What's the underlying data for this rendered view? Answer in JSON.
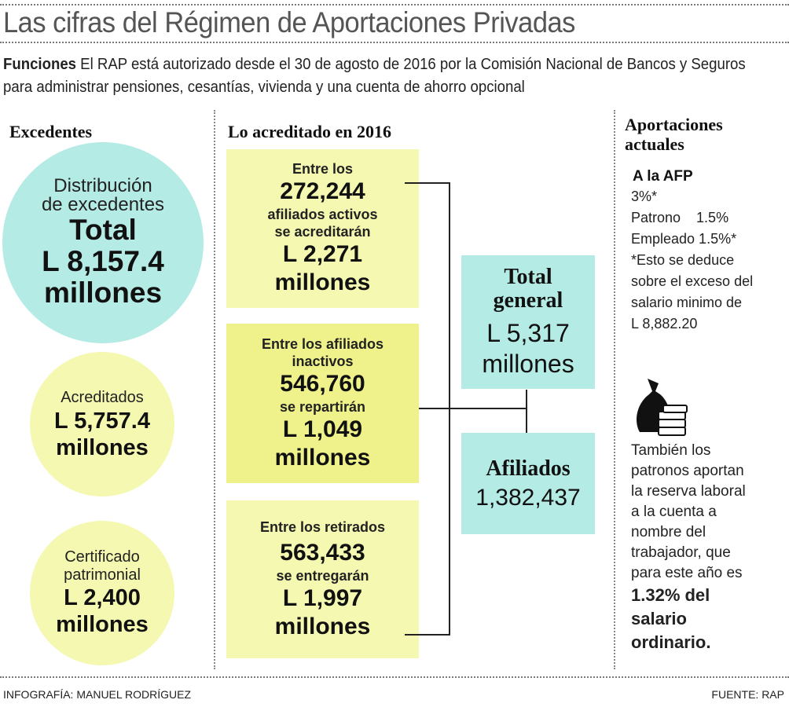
{
  "title": "Las cifras del Régimen de Aportaciones Privadas",
  "intro": {
    "label": "Funciones",
    "text": " El RAP está autorizado desde el 30 de agosto de 2016 por la Comisión Nacional de Bancos y Seguros para administrar pensiones, cesantías, vivienda y una cuenta de ahorro opcional"
  },
  "excedentes": {
    "heading": "Excedentes",
    "distribucion": {
      "line1": "Distribución",
      "line2": "de excedentes",
      "line3": "Total",
      "amount": "L 8,157.4",
      "unit": "millones"
    },
    "acreditados": {
      "label": "Acreditados",
      "amount": "L 5,757.4",
      "unit": "millones"
    },
    "certificado": {
      "line1": "Certificado",
      "line2": "patrimonial",
      "amount": "L 2,400",
      "unit": "millones"
    }
  },
  "acreditado": {
    "heading": "Lo acreditado en 2016",
    "boxes": [
      {
        "intro": "Entre los",
        "count": "272,244",
        "desc1": "afiliados activos",
        "desc2": "se acreditarán",
        "amount": "L 2,271",
        "unit": "millones"
      },
      {
        "intro": "Entre los afiliados",
        "intro2": "inactivos",
        "count": "546,760",
        "desc1": "se repartirán",
        "amount": "L 1,049",
        "unit": "millones"
      },
      {
        "intro": "Entre los retirados",
        "count": "563,433",
        "desc1": "se entregarán",
        "amount": "L 1,997",
        "unit": "millones"
      }
    ],
    "total": {
      "label1": "Total",
      "label2": "general",
      "amount": "L 5,317",
      "unit": "millones"
    },
    "afiliados": {
      "label": "Afiliados",
      "count": "1,382,437"
    }
  },
  "aportaciones": {
    "heading1": "Aportaciones",
    "heading2": "actuales",
    "afp_label": "A la AFP",
    "lines": [
      "3%*",
      "Patrono    1.5%",
      "Empleado 1.5%*",
      "*Esto se deduce",
      "sobre el exceso del",
      "salario minimo de",
      "L 8,882.20"
    ],
    "icon": "money-bag-icon",
    "note_lines": [
      "También los",
      "patronos aportan",
      "la reserva laboral",
      "a la cuenta a",
      "nombre del",
      "trabajador, que",
      "para este año es"
    ],
    "note_bold": [
      "1.32% del",
      "salario",
      "ordinario."
    ]
  },
  "footer": {
    "credit": "INFOGRAFÍA: MANUEL RODRÍGUEZ",
    "source": "FUENTE: RAP"
  },
  "colors": {
    "teal": "#b5ebe5",
    "yellow": "#f5f8b0",
    "yellow_strong": "#eff28a"
  }
}
